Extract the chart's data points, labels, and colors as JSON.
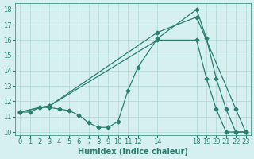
{
  "line1_x": [
    0,
    1,
    2,
    3,
    4,
    5,
    6,
    7,
    8,
    9,
    10,
    11,
    12,
    14,
    18,
    19,
    20,
    21,
    22,
    23
  ],
  "line1_y": [
    11.3,
    11.3,
    11.6,
    11.6,
    11.5,
    11.4,
    11.1,
    10.6,
    10.3,
    10.3,
    10.7,
    12.7,
    14.2,
    16.1,
    18.0,
    16.1,
    13.5,
    11.5,
    10.0,
    10.0
  ],
  "line2_x": [
    0,
    2,
    3,
    14,
    18,
    22,
    23
  ],
  "line2_y": [
    11.3,
    11.6,
    11.7,
    16.5,
    17.5,
    11.5,
    10.0
  ],
  "line3_x": [
    0,
    2,
    3,
    14,
    18,
    19,
    20,
    21,
    22,
    23
  ],
  "line3_y": [
    11.3,
    11.6,
    11.7,
    16.0,
    16.0,
    13.5,
    11.5,
    10.0,
    10.0,
    10.0
  ],
  "line_color": "#2a7f6f",
  "bg_color": "#d6f0f0",
  "grid_color": "#b0d8d8",
  "xlabel": "Humidex (Indice chaleur)",
  "xlim": [
    -0.5,
    23.5
  ],
  "ylim": [
    9.8,
    18.4
  ],
  "xticks": [
    0,
    1,
    2,
    3,
    4,
    5,
    6,
    7,
    8,
    9,
    10,
    11,
    12,
    14,
    18,
    19,
    20,
    21,
    22,
    23
  ],
  "yticks": [
    10,
    11,
    12,
    13,
    14,
    15,
    16,
    17,
    18
  ],
  "xlabel_fontsize": 7,
  "tick_fontsize": 6
}
